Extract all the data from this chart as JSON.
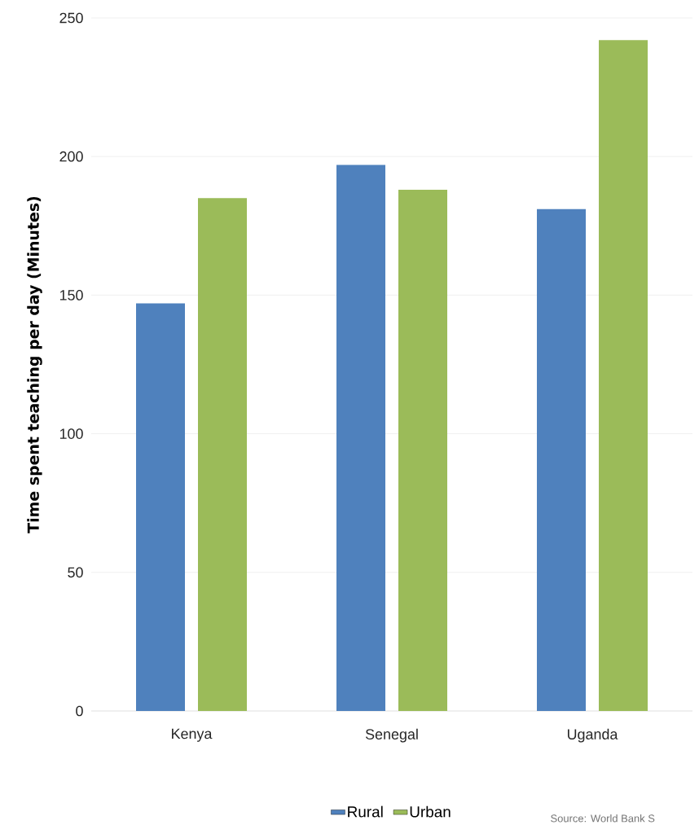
{
  "chart_data": {
    "type": "bar",
    "ylabel": "Time spent teaching per day (Minutes)",
    "categories": [
      "Kenya",
      "Senegal",
      "Uganda"
    ],
    "series": [
      {
        "name": "Rural",
        "color": "#4f81bd",
        "values": [
          147,
          197,
          181
        ]
      },
      {
        "name": "Urban",
        "color": "#9bbb59",
        "values": [
          185,
          188,
          242
        ]
      }
    ],
    "ylim": [
      0,
      250
    ],
    "yticks": [
      0,
      50,
      100,
      150,
      200,
      250
    ],
    "grid": "y",
    "legend": "bottom",
    "annotations": [
      "Source: World Bank S"
    ]
  }
}
